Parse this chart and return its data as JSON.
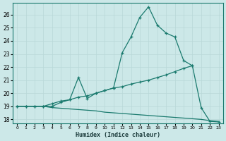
{
  "title": "",
  "xlabel": "Humidex (Indice chaleur)",
  "ylabel": "",
  "bg_color": "#cce8e8",
  "line_color": "#1a7a6e",
  "grid_color": "#b8d8d8",
  "xlim": [
    -0.5,
    23.5
  ],
  "ylim": [
    17.7,
    26.9
  ],
  "xticks": [
    0,
    1,
    2,
    3,
    4,
    5,
    6,
    7,
    8,
    9,
    10,
    11,
    12,
    13,
    14,
    15,
    16,
    17,
    18,
    19,
    20,
    21,
    22,
    23
  ],
  "yticks": [
    18,
    19,
    20,
    21,
    22,
    23,
    24,
    25,
    26
  ],
  "curve1_x": [
    0,
    1,
    2,
    3,
    4,
    5,
    6,
    7,
    8,
    9,
    10,
    11,
    12,
    13,
    14,
    15,
    16,
    17,
    18,
    19,
    20,
    21,
    22,
    23
  ],
  "curve1_y": [
    19.0,
    19.0,
    19.0,
    19.0,
    19.0,
    19.3,
    19.5,
    21.2,
    19.6,
    20.0,
    20.2,
    20.4,
    23.1,
    24.3,
    25.8,
    26.6,
    25.2,
    24.6,
    24.3,
    22.5,
    22.1,
    18.9,
    17.85,
    17.8
  ],
  "curve2_x": [
    0,
    1,
    2,
    3,
    4,
    5,
    6,
    7,
    8,
    9,
    10,
    11,
    12,
    13,
    14,
    15,
    16,
    17,
    18,
    19,
    20
  ],
  "curve2_y": [
    19.0,
    19.0,
    19.0,
    19.0,
    19.2,
    19.4,
    19.5,
    19.7,
    19.8,
    20.0,
    20.2,
    20.4,
    20.5,
    20.7,
    20.85,
    21.0,
    21.2,
    21.4,
    21.65,
    21.9,
    22.1
  ],
  "curve3_x": [
    0,
    1,
    2,
    3,
    4,
    5,
    6,
    7,
    8,
    9,
    10,
    11,
    12,
    13,
    14,
    15,
    16,
    17,
    18,
    19,
    20,
    21,
    22,
    23
  ],
  "curve3_y": [
    19.0,
    19.0,
    19.0,
    19.0,
    18.9,
    18.85,
    18.8,
    18.75,
    18.7,
    18.65,
    18.55,
    18.5,
    18.45,
    18.4,
    18.35,
    18.3,
    18.25,
    18.2,
    18.15,
    18.1,
    18.05,
    18.0,
    17.9,
    17.85
  ],
  "marker": "+"
}
